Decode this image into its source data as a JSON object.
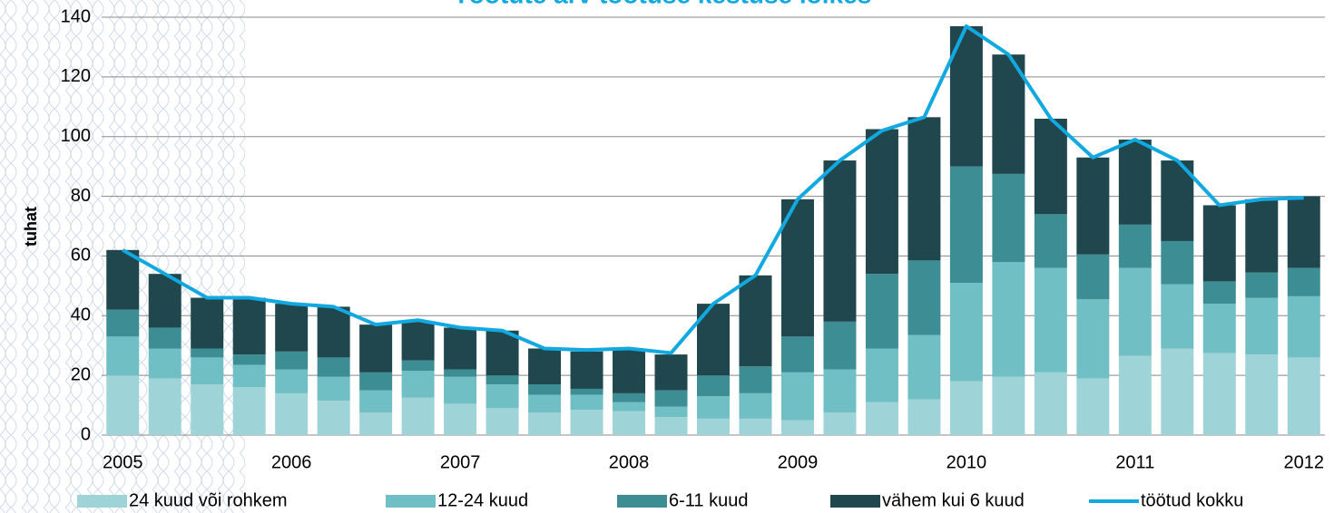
{
  "chart_data": {
    "type": "bar",
    "stacked": true,
    "title": "Töötute arv töötuse kestuse lõikes",
    "y_label": "tuhat",
    "categories": [
      "2005",
      null,
      null,
      null,
      "2006",
      null,
      null,
      null,
      "2007",
      null,
      null,
      null,
      "2008",
      null,
      null,
      null,
      "2009",
      null,
      null,
      null,
      "2010",
      null,
      null,
      null,
      "2011",
      null,
      null,
      null,
      "2012"
    ],
    "series": [
      {
        "name": "24 kuud või rohkem",
        "color": "#9ed3d8",
        "values": [
          20,
          19,
          17,
          16,
          14,
          11.5,
          7.5,
          12.5,
          10.5,
          9,
          7.5,
          8.5,
          8,
          6,
          5.5,
          5.5,
          5,
          7.5,
          11,
          12,
          18,
          19.5,
          21,
          19,
          26.5,
          29,
          27.5,
          27,
          26
        ]
      },
      {
        "name": "12-24 kuud",
        "color": "#70bfc4",
        "values": [
          13,
          10,
          9,
          7.5,
          8,
          8,
          7.5,
          9,
          9,
          8,
          6,
          5,
          3,
          3.5,
          7.5,
          8.5,
          16,
          14.5,
          18,
          21.5,
          33,
          38.5,
          35,
          26.5,
          29.5,
          21.5,
          16.5,
          19,
          20.5
        ]
      },
      {
        "name": "6-11 kuud",
        "color": "#3d8e94",
        "values": [
          9,
          7,
          3,
          3.5,
          6,
          6.5,
          6,
          3.5,
          2.5,
          3,
          3.5,
          2,
          3,
          5.5,
          7,
          9,
          12,
          16,
          25,
          25,
          39,
          29.5,
          18,
          15,
          14.5,
          14.5,
          7.5,
          8.5,
          9.5
        ]
      },
      {
        "name": "vähem kui 6 kuud",
        "color": "#1f474d",
        "values": [
          20,
          18,
          17,
          19,
          16,
          17,
          16,
          13,
          14,
          15,
          12,
          12.5,
          15,
          12,
          24,
          30.5,
          46,
          54,
          48.5,
          48,
          47,
          40,
          32,
          32.5,
          28.5,
          27,
          25.5,
          24.5,
          24
        ]
      },
      {
        "name": "töötud kokku",
        "type": "line",
        "color": "#12a9e0",
        "values": [
          62,
          54,
          46,
          46,
          44,
          43,
          37,
          38.5,
          36,
          35,
          29,
          28.5,
          29,
          27.5,
          44,
          53.5,
          79,
          92,
          102,
          106.5,
          137,
          127.5,
          106,
          93,
          99,
          92,
          77,
          79,
          79.5
        ]
      }
    ],
    "ylim": [
      0,
      140
    ],
    "yticks": [
      0,
      20,
      40,
      60,
      80,
      100,
      120,
      140
    ],
    "grid": true
  }
}
